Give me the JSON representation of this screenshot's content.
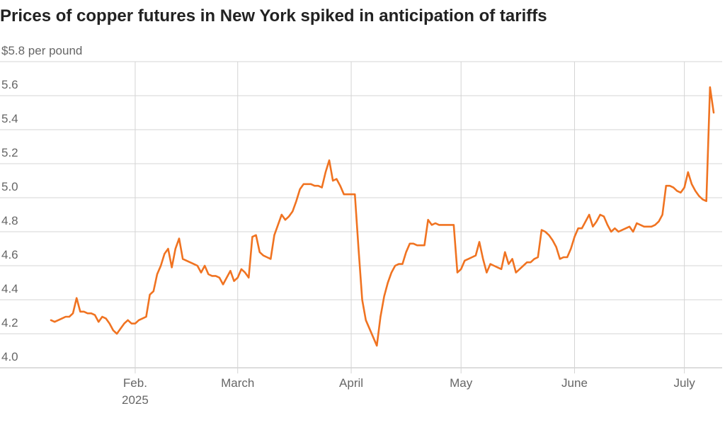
{
  "chart_data": {
    "type": "line",
    "title": "Prices of copper futures in New York spiked in anticipation of tariffs",
    "x_year": "2025",
    "categories": [
      null,
      null,
      null,
      null,
      null,
      null,
      null,
      null,
      null,
      null,
      null,
      null,
      null,
      null,
      null,
      null,
      null,
      null,
      null,
      null,
      null,
      null,
      null,
      "Feb.",
      null,
      null,
      null,
      null,
      null,
      null,
      null,
      null,
      null,
      null,
      null,
      null,
      null,
      null,
      null,
      null,
      null,
      null,
      null,
      null,
      null,
      null,
      null,
      null,
      null,
      null,
      null,
      "March",
      null,
      null,
      null,
      null,
      null,
      null,
      null,
      null,
      null,
      null,
      null,
      null,
      null,
      null,
      null,
      null,
      null,
      null,
      null,
      null,
      null,
      null,
      null,
      null,
      null,
      null,
      null,
      null,
      null,
      null,
      "April",
      null,
      null,
      null,
      null,
      null,
      null,
      null,
      null,
      null,
      null,
      null,
      null,
      null,
      null,
      null,
      null,
      null,
      null,
      null,
      null,
      null,
      null,
      null,
      null,
      null,
      null,
      null,
      null,
      null,
      "May",
      null,
      null,
      null,
      null,
      null,
      null,
      null,
      null,
      null,
      null,
      null,
      null,
      null,
      null,
      null,
      null,
      null,
      null,
      null,
      null,
      null,
      null,
      null,
      null,
      null,
      null,
      null,
      null,
      null,
      null,
      "June",
      null,
      null,
      null,
      null,
      null,
      null,
      null,
      null,
      null,
      null,
      null,
      null,
      null,
      null,
      null,
      null,
      null,
      null,
      null,
      null,
      null,
      null,
      null,
      null,
      null,
      null,
      null,
      null,
      null,
      "July",
      null,
      null,
      null,
      null,
      null,
      null,
      null,
      null
    ],
    "values": [
      4.28,
      4.27,
      4.28,
      4.29,
      4.3,
      4.3,
      4.32,
      4.41,
      4.33,
      4.33,
      4.32,
      4.32,
      4.31,
      4.27,
      4.3,
      4.29,
      4.26,
      4.22,
      4.2,
      4.23,
      4.26,
      4.28,
      4.26,
      4.26,
      4.28,
      4.29,
      4.3,
      4.43,
      4.45,
      4.55,
      4.6,
      4.67,
      4.7,
      4.59,
      4.7,
      4.76,
      4.64,
      4.63,
      4.62,
      4.61,
      4.6,
      4.56,
      4.6,
      4.55,
      4.54,
      4.54,
      4.53,
      4.49,
      4.53,
      4.57,
      4.51,
      4.53,
      4.58,
      4.56,
      4.53,
      4.77,
      4.78,
      4.68,
      4.66,
      4.65,
      4.64,
      4.78,
      4.84,
      4.9,
      4.87,
      4.89,
      4.92,
      4.98,
      5.05,
      5.08,
      5.08,
      5.08,
      5.07,
      5.07,
      5.06,
      5.15,
      5.22,
      5.1,
      5.11,
      5.07,
      5.02,
      5.02,
      5.02,
      5.02,
      4.7,
      4.4,
      4.28,
      4.23,
      4.18,
      4.13,
      4.3,
      4.42,
      4.5,
      4.56,
      4.6,
      4.61,
      4.61,
      4.68,
      4.73,
      4.73,
      4.72,
      4.72,
      4.72,
      4.87,
      4.84,
      4.85,
      4.84,
      4.84,
      4.84,
      4.84,
      4.84,
      4.56,
      4.58,
      4.63,
      4.64,
      4.65,
      4.66,
      4.74,
      4.64,
      4.56,
      4.61,
      4.6,
      4.59,
      4.58,
      4.68,
      4.61,
      4.64,
      4.56,
      4.58,
      4.6,
      4.62,
      4.62,
      4.64,
      4.65,
      4.81,
      4.8,
      4.78,
      4.75,
      4.71,
      4.64,
      4.65,
      4.65,
      4.7,
      4.77,
      4.82,
      4.82,
      4.86,
      4.9,
      4.83,
      4.86,
      4.9,
      4.89,
      4.84,
      4.8,
      4.82,
      4.8,
      4.81,
      4.82,
      4.83,
      4.8,
      4.85,
      4.84,
      4.83,
      4.83,
      4.83,
      4.84,
      4.86,
      4.9,
      5.07,
      5.07,
      5.06,
      5.04,
      5.03,
      5.06,
      5.15,
      5.08,
      5.04,
      5.01,
      4.99,
      4.98,
      5.65,
      5.5
    ],
    "color": "#f07321",
    "ylim": [
      4.0,
      5.8
    ],
    "yticks": [
      {
        "value": 4.0,
        "label": "4.0"
      },
      4.2,
      4.4,
      4.6,
      4.8,
      {
        "value": 5.0,
        "label": "5.0"
      },
      5.2,
      5.4,
      5.6,
      {
        "value": 5.8,
        "label": "$5.8 per pound"
      }
    ],
    "grid": true
  }
}
